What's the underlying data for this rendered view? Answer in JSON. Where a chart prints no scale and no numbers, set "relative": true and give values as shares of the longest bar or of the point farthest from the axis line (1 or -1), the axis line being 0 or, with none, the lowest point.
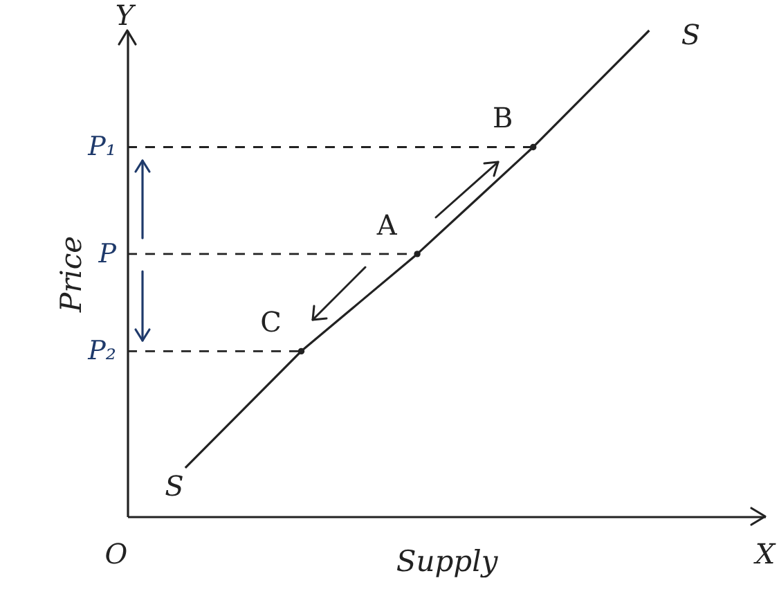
{
  "chart_data": {
    "type": "line",
    "xlabel": "Supply",
    "ylabel": "Price",
    "relative": true,
    "categories": [
      null,
      null,
      null,
      null,
      null,
      null,
      null,
      null,
      null,
      null,
      null,
      null
    ],
    "series": [
      {
        "name": "S",
        "color": "#222222",
        "values": [
          null,
          0.1,
          0.22,
          0.34,
          0.44,
          0.54,
          0.65,
          0.76,
          0.88,
          1.0,
          null,
          null
        ]
      }
    ],
    "ref_lines": [
      {
        "axis": "y",
        "value": 0.76,
        "label": "P₁",
        "line_style": "dashed"
      },
      {
        "axis": "y",
        "value": 0.54,
        "label": "P",
        "line_style": "dashed"
      },
      {
        "axis": "y",
        "value": 0.34,
        "label": "P₂",
        "line_style": "dashed"
      }
    ],
    "annotations": [
      "O",
      "Y",
      "X",
      {
        "text": "B",
        "y": 0.76
      },
      {
        "text": "A",
        "y": 0.54
      },
      {
        "text": "C",
        "y": 0.34
      }
    ]
  }
}
